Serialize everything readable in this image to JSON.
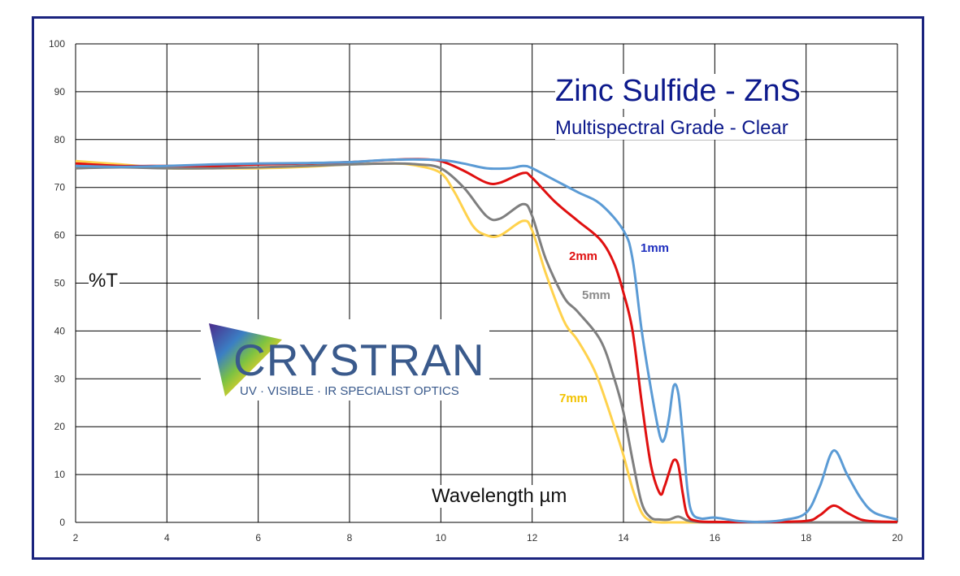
{
  "chart_data": {
    "type": "line",
    "title": "Zinc Sulfide - ZnS",
    "subtitle": "Multispectral Grade - Clear",
    "xlabel": "Wavelength µm",
    "ylabel": "%T",
    "xlim": [
      2,
      20
    ],
    "ylim": [
      0,
      100
    ],
    "xticks": [
      2,
      4,
      6,
      8,
      10,
      12,
      14,
      16,
      18,
      20
    ],
    "yticks": [
      0,
      10,
      20,
      30,
      40,
      50,
      60,
      70,
      80,
      90,
      100
    ],
    "grid": true,
    "series": [
      {
        "name": "1mm",
        "color": "#5b9bd5",
        "label_color": "#1f2fbf",
        "x": [
          2,
          3,
          4,
          5,
          6,
          7,
          8,
          9,
          10,
          10.5,
          11,
          11.5,
          11.8,
          12,
          12.5,
          13,
          13.5,
          14,
          14.2,
          14.4,
          14.6,
          14.8,
          14.9,
          15,
          15.1,
          15.2,
          15.3,
          15.4,
          15.5,
          15.7,
          16,
          16.5,
          17,
          17.5,
          18,
          18.3,
          18.6,
          18.9,
          19.2,
          19.5,
          20
        ],
        "y": [
          74.5,
          74.3,
          74.5,
          74.8,
          75.0,
          75.1,
          75.3,
          75.8,
          75.7,
          75.0,
          74.0,
          74.0,
          74.5,
          74.0,
          71.5,
          69.0,
          66.5,
          61.0,
          55.0,
          40.0,
          28.0,
          18.0,
          17.5,
          22.0,
          28.5,
          27.0,
          18.0,
          7.0,
          2.0,
          0.8,
          1.0,
          0.3,
          0.1,
          0.5,
          2.0,
          7.5,
          15.0,
          10.0,
          5.0,
          2.0,
          0.6
        ]
      },
      {
        "name": "2mm",
        "color": "#e01010",
        "label_color": "#e01010",
        "x": [
          2,
          3,
          4,
          5,
          6,
          7,
          8,
          9,
          9.5,
          10,
          10.5,
          11,
          11.3,
          11.8,
          12,
          12.5,
          13,
          13.5,
          13.8,
          14,
          14.2,
          14.4,
          14.6,
          14.8,
          14.9,
          15,
          15.1,
          15.2,
          15.3,
          15.4,
          15.6,
          16,
          17,
          18,
          18.3,
          18.6,
          18.9,
          19.2,
          19.5,
          20
        ],
        "y": [
          75.0,
          74.5,
          74.5,
          74.5,
          74.8,
          75.0,
          75.3,
          75.8,
          75.9,
          75.5,
          73.5,
          71.0,
          71.0,
          73.0,
          72.0,
          67.0,
          63.0,
          59.0,
          54.0,
          48.0,
          40.0,
          25.0,
          12.0,
          6.0,
          7.5,
          10.5,
          13.0,
          12.0,
          6.0,
          1.5,
          0.3,
          0.1,
          0.1,
          0.3,
          1.5,
          3.5,
          2.0,
          0.6,
          0.2,
          0.1
        ]
      },
      {
        "name": "5mm",
        "color": "#7f7f7f",
        "label_color": "#8c8c8c",
        "x": [
          2,
          3,
          4,
          5,
          6,
          7,
          8,
          9,
          9.5,
          10,
          10.5,
          11,
          11.3,
          11.8,
          12,
          12.3,
          12.7,
          13,
          13.5,
          13.8,
          14,
          14.2,
          14.4,
          14.6,
          14.8,
          15,
          15.2,
          15.4,
          15.6,
          16,
          18,
          20
        ],
        "y": [
          74.0,
          74.2,
          74.0,
          74.0,
          74.2,
          74.5,
          74.8,
          75.0,
          74.8,
          74.0,
          70.0,
          64.0,
          63.5,
          66.5,
          64.0,
          55.0,
          47.0,
          44.0,
          38.0,
          30.0,
          23.0,
          13.0,
          4.0,
          1.0,
          0.6,
          0.6,
          1.2,
          0.4,
          0.1,
          0.0,
          0.0,
          0.0
        ]
      },
      {
        "name": "7mm",
        "color": "#ffd24d",
        "label_color": "#f2c200",
        "x": [
          2,
          3,
          4,
          5,
          6,
          7,
          8,
          9,
          9.5,
          10,
          10.3,
          10.7,
          11,
          11.3,
          11.8,
          12,
          12.3,
          12.7,
          13,
          13.4,
          13.8,
          14,
          14.2,
          14.4,
          14.6,
          14.8,
          15,
          15.5,
          16,
          18,
          20
        ],
        "y": [
          75.5,
          74.8,
          74.0,
          74.0,
          74.0,
          74.3,
          74.8,
          75.0,
          74.5,
          73.0,
          69.0,
          62.0,
          60.0,
          60.0,
          63.0,
          61.0,
          52.0,
          42.0,
          38.0,
          31.0,
          20.0,
          14.0,
          7.0,
          2.0,
          0.3,
          0.0,
          0.0,
          0.0,
          0.0,
          0.0,
          0.0
        ]
      }
    ]
  },
  "logo": {
    "text": "CRYSTRAN",
    "tagline": "UV · VISIBLE · IR SPECIALIST OPTICS"
  }
}
